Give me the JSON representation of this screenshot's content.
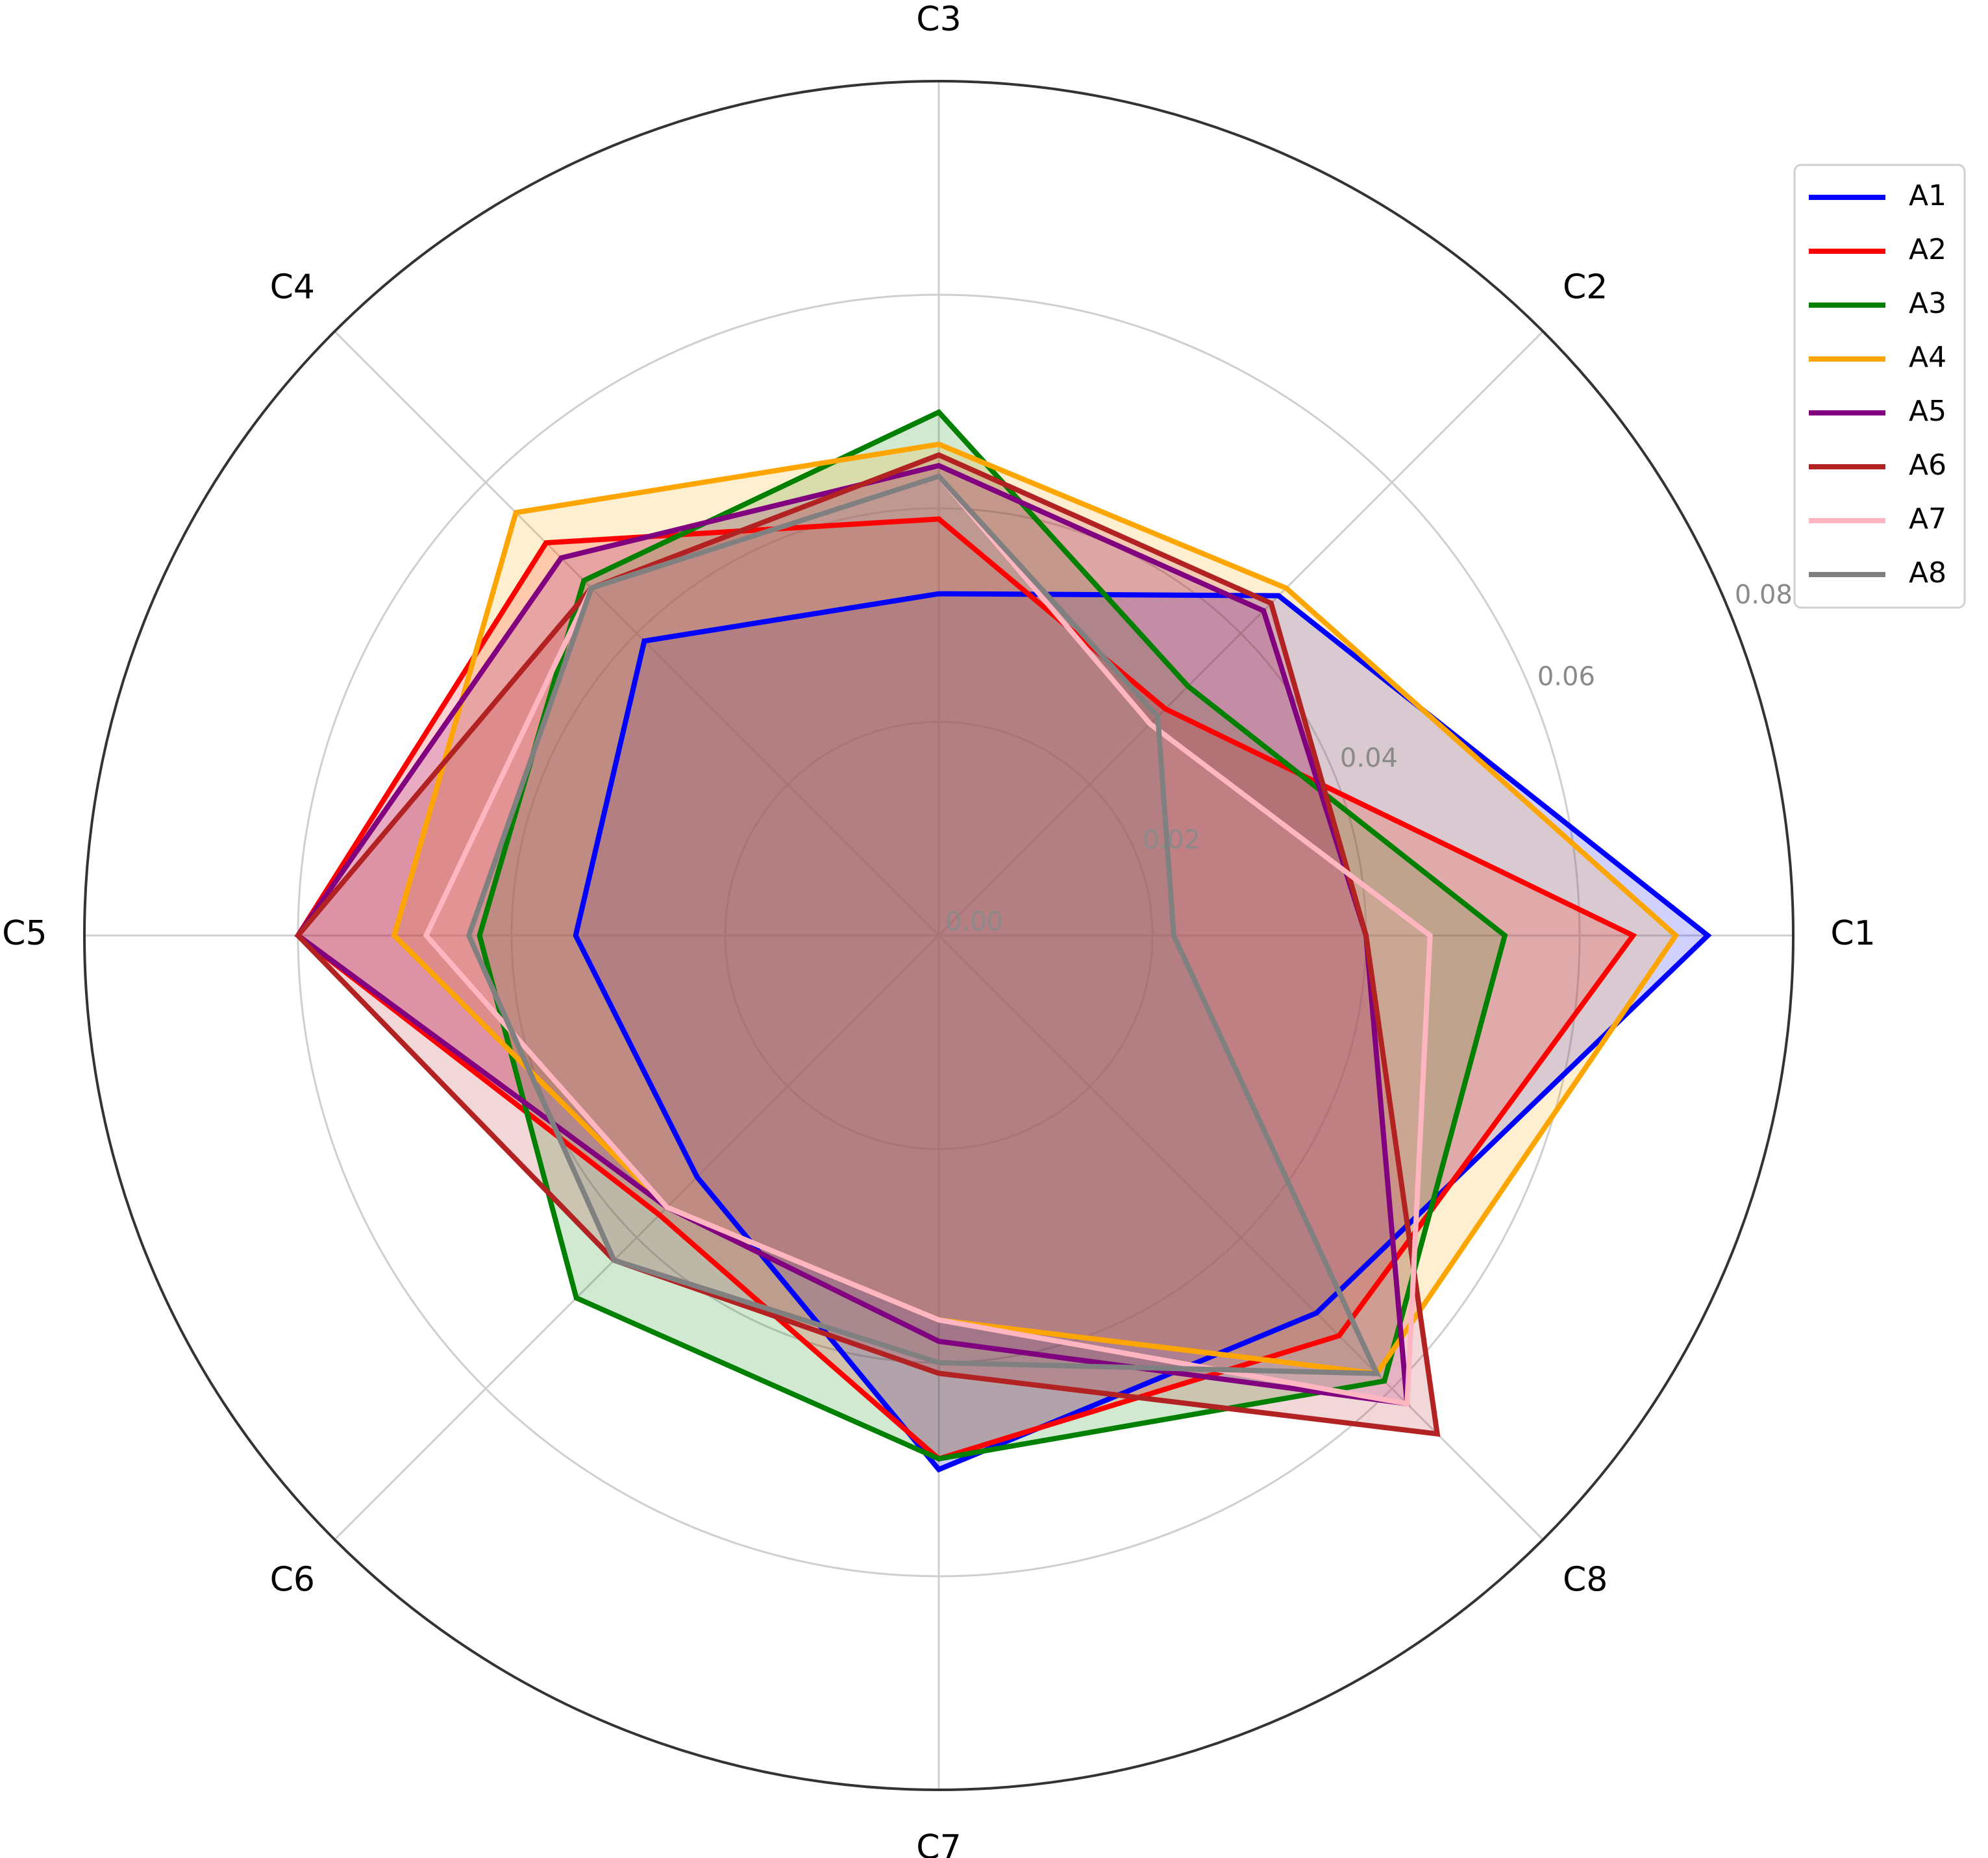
{
  "chart_data": {
    "type": "radar",
    "axes": [
      "C1",
      "C2",
      "C3",
      "C4",
      "C5",
      "C6",
      "C7",
      "C8"
    ],
    "rlim": [
      0,
      0.08
    ],
    "rticks": [
      "0.00",
      "0.02",
      "0.04",
      "0.06",
      "0.08"
    ],
    "rtick_values": [
      0,
      0.02,
      0.04,
      0.06,
      0.08
    ],
    "grid": true,
    "legend_position": "top-right",
    "fill_alpha": 0.18,
    "series": [
      {
        "name": "A1",
        "color": "#0000ff",
        "values": [
          0.072,
          0.045,
          0.032,
          0.039,
          0.034,
          0.032,
          0.05,
          0.05
        ]
      },
      {
        "name": "A2",
        "color": "#ff0000",
        "values": [
          0.065,
          0.03,
          0.039,
          0.052,
          0.06,
          0.037,
          0.049,
          0.053
        ]
      },
      {
        "name": "A3",
        "color": "#008000",
        "values": [
          0.053,
          0.033,
          0.049,
          0.047,
          0.043,
          0.048,
          0.049,
          0.059
        ]
      },
      {
        "name": "A4",
        "color": "#ffa500",
        "values": [
          0.069,
          0.046,
          0.046,
          0.056,
          0.051,
          0.036,
          0.036,
          0.058
        ]
      },
      {
        "name": "A5",
        "color": "#800080",
        "values": [
          0.04,
          0.043,
          0.044,
          0.05,
          0.06,
          0.036,
          0.038,
          0.062
        ]
      },
      {
        "name": "A6",
        "color": "#b22222",
        "values": [
          0.04,
          0.044,
          0.045,
          0.046,
          0.06,
          0.043,
          0.041,
          0.066
        ]
      },
      {
        "name": "A7",
        "color": "#ffb6c1",
        "values": [
          0.046,
          0.028,
          0.043,
          0.046,
          0.048,
          0.036,
          0.036,
          0.062
        ]
      },
      {
        "name": "A8",
        "color": "#808080",
        "values": [
          0.022,
          0.029,
          0.043,
          0.046,
          0.044,
          0.043,
          0.04,
          0.058
        ]
      }
    ]
  }
}
